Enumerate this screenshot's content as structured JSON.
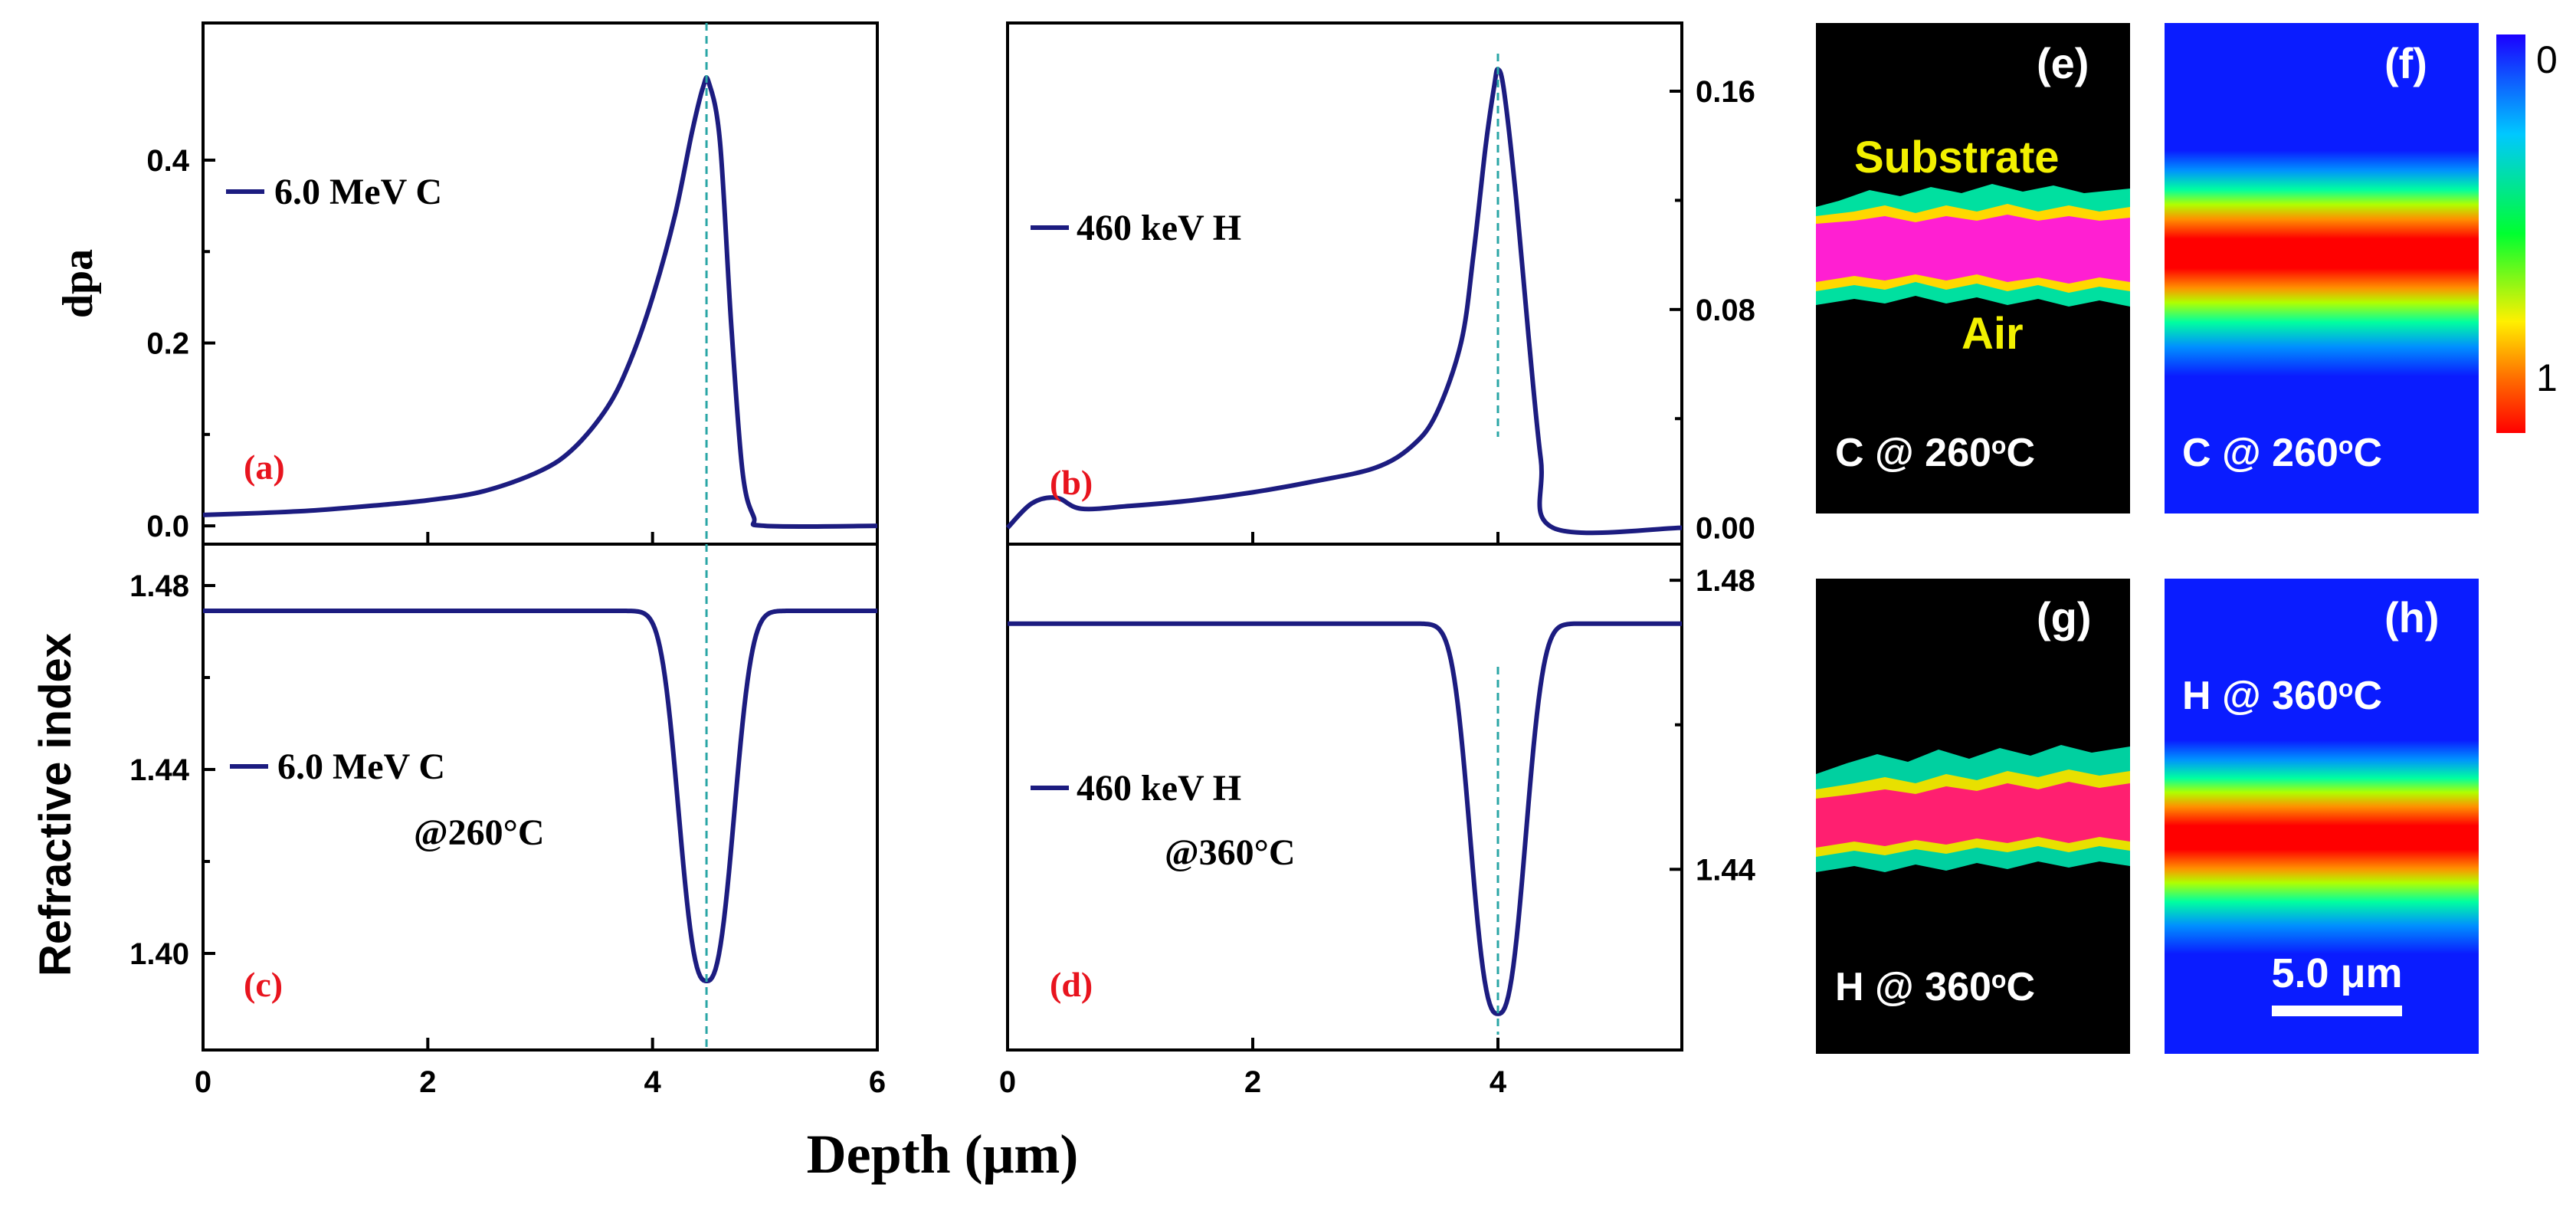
{
  "figure": {
    "x_axis_title": "Depth (μm)",
    "colorbar": {
      "top_label": "0",
      "bottom_label": "1",
      "colors": [
        "#1b00ff",
        "#00e0ff",
        "#00ff30",
        "#fff000",
        "#ff7000",
        "#ff0000"
      ]
    }
  },
  "chart_data": [
    {
      "panel": "(a)",
      "type": "line",
      "ylabel": "dpa",
      "xlim": [
        0,
        6
      ],
      "ylim": [
        -0.02,
        0.55
      ],
      "x_ticks": [
        "0",
        "2",
        "4",
        "6"
      ],
      "y_ticks": [
        "0.0",
        "0.2",
        "0.4"
      ],
      "series": [
        {
          "name": "6.0 MeV C",
          "peak_x": 4.48,
          "peak_y": 0.485,
          "x": [
            0,
            0.5,
            1.0,
            1.5,
            2.0,
            2.5,
            3.0,
            3.3,
            3.6,
            3.8,
            4.0,
            4.2,
            4.35,
            4.45,
            4.5,
            4.6,
            4.7,
            4.8,
            4.9,
            5.0,
            6.0
          ],
          "y": [
            0.012,
            0.014,
            0.017,
            0.022,
            0.028,
            0.038,
            0.06,
            0.085,
            0.13,
            0.18,
            0.25,
            0.34,
            0.43,
            0.48,
            0.485,
            0.42,
            0.22,
            0.06,
            0.01,
            0.0,
            0.0
          ]
        }
      ],
      "marker_x": 4.48
    },
    {
      "panel": "(b)",
      "type": "line",
      "ylabel": "",
      "xlim": [
        0,
        5.5
      ],
      "ylim": [
        -0.006,
        0.185
      ],
      "x_ticks": [
        "0",
        "2",
        "4"
      ],
      "y_ticks": [
        "0.00",
        "0.08",
        "0.16"
      ],
      "series": [
        {
          "name": "460 keV H",
          "peak_x": 4.0,
          "peak_y": 0.168,
          "x": [
            0,
            0.2,
            0.4,
            0.6,
            1.0,
            1.5,
            2.0,
            2.5,
            3.0,
            3.3,
            3.5,
            3.7,
            3.8,
            3.9,
            3.97,
            4.0,
            4.05,
            4.15,
            4.25,
            4.35,
            4.45,
            5.5
          ],
          "y": [
            0.0,
            0.009,
            0.011,
            0.007,
            0.008,
            0.01,
            0.013,
            0.017,
            0.022,
            0.03,
            0.042,
            0.068,
            0.1,
            0.14,
            0.162,
            0.168,
            0.16,
            0.12,
            0.07,
            0.025,
            0.0,
            0.0
          ]
        }
      ],
      "marker_x": 4.0
    },
    {
      "panel": "(c)",
      "type": "line",
      "ylabel": "Refractive index",
      "xlim": [
        0,
        6
      ],
      "ylim": [
        1.379,
        1.489
      ],
      "x_ticks": [
        "0",
        "2",
        "4",
        "6"
      ],
      "y_ticks": [
        "1.40",
        "1.44",
        "1.48"
      ],
      "series": [
        {
          "name": "6.0 MeV C",
          "condition": "@260°C",
          "baseline": 1.4745,
          "min_x": 4.48,
          "min_y": 1.394,
          "width": 0.3
        }
      ],
      "marker_x": 4.48
    },
    {
      "panel": "(d)",
      "type": "line",
      "ylabel": "",
      "xlim": [
        0,
        5.5
      ],
      "ylim": [
        1.415,
        1.485
      ],
      "x_ticks": [
        "0",
        "2",
        "4"
      ],
      "y_ticks": [
        "1.44",
        "1.48"
      ],
      "series": [
        {
          "name": "460 keV H",
          "condition": "@360°C",
          "baseline": 1.474,
          "min_x": 4.0,
          "min_y": 1.42,
          "width": 0.275
        }
      ],
      "marker_x": 4.0
    }
  ],
  "images": {
    "e": {
      "letter": "(e)",
      "caption": "C @ 260",
      "caption_sup": "o",
      "caption_end": "C",
      "substrate": "Substrate",
      "air": "Air"
    },
    "f": {
      "letter": "(f)",
      "caption": "C @ 260",
      "caption_sup": "o",
      "caption_end": "C"
    },
    "g": {
      "letter": "(g)",
      "caption": "H @ 360",
      "caption_sup": "o",
      "caption_end": "C"
    },
    "h": {
      "letter": "(h)",
      "caption": "H @ 360",
      "caption_sup": "o",
      "caption_end": "C",
      "scalebar": "5.0 μm"
    }
  }
}
